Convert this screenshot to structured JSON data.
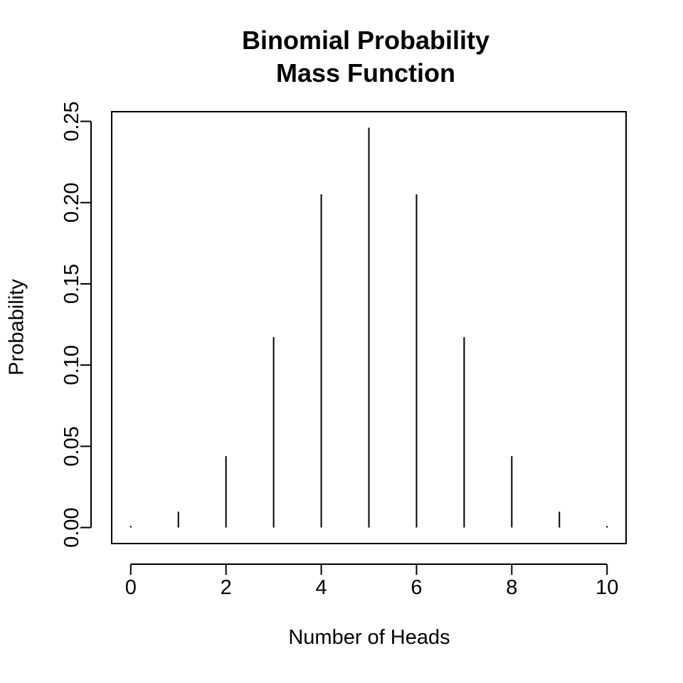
{
  "chart_data": {
    "type": "bar",
    "title_lines": [
      "Binomial Probability",
      "Mass Function"
    ],
    "xlabel": "Number of Heads",
    "ylabel": "Probability",
    "x": [
      0,
      1,
      2,
      3,
      4,
      5,
      6,
      7,
      8,
      9,
      10
    ],
    "values": [
      0.000977,
      0.009766,
      0.043945,
      0.117188,
      0.205078,
      0.246094,
      0.205078,
      0.117188,
      0.043945,
      0.009766,
      0.000977
    ],
    "xlim": [
      -0.4,
      10.4
    ],
    "ylim": [
      -0.00984,
      0.25594
    ],
    "x_ticks": [
      0,
      2,
      4,
      6,
      8,
      10
    ],
    "x_tick_labels": [
      "0",
      "2",
      "4",
      "6",
      "8",
      "10"
    ],
    "y_ticks": [
      0.0,
      0.05,
      0.1,
      0.15,
      0.2,
      0.25
    ],
    "y_tick_labels": [
      "0.00",
      "0.05",
      "0.10",
      "0.15",
      "0.20",
      "0.25"
    ],
    "grid": false,
    "legend": "none",
    "color": "#000000"
  }
}
